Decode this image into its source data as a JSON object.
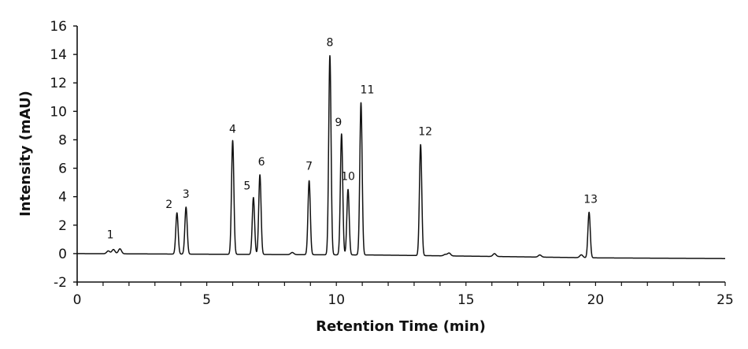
{
  "chart_data": {
    "type": "line",
    "title": "",
    "xlabel": "Retention Time (min)",
    "ylabel": "Intensity (mAU)",
    "xlim": [
      0,
      25
    ],
    "ylim": [
      -2,
      16
    ],
    "x_ticks": [
      0,
      5,
      10,
      15,
      20,
      25
    ],
    "y_ticks": [
      -2,
      0,
      2,
      4,
      6,
      8,
      10,
      12,
      14,
      16
    ],
    "grid": false,
    "legend": null,
    "baseline": [
      {
        "x": 0,
        "y": 0
      },
      {
        "x": 11.5,
        "y": -0.1
      },
      {
        "x": 16,
        "y": -0.2
      },
      {
        "x": 20,
        "y": -0.3
      },
      {
        "x": 25,
        "y": -0.35
      }
    ],
    "peaks": [
      {
        "label": "1",
        "time": 1.4,
        "intensity": 0.3
      },
      {
        "label": "2",
        "time": 3.85,
        "intensity": 2.9
      },
      {
        "label": "3",
        "time": 4.2,
        "intensity": 3.3
      },
      {
        "label": "4",
        "time": 6.0,
        "intensity": 8.0
      },
      {
        "label": "5",
        "time": 6.8,
        "intensity": 4.0
      },
      {
        "label": "6",
        "time": 7.05,
        "intensity": 5.6
      },
      {
        "label": "7",
        "time": 8.95,
        "intensity": 5.2
      },
      {
        "label": "8",
        "time": 9.75,
        "intensity": 14.0
      },
      {
        "label": "9",
        "time": 10.2,
        "intensity": 8.5
      },
      {
        "label": "10",
        "time": 10.45,
        "intensity": 4.6
      },
      {
        "label": "11",
        "time": 10.95,
        "intensity": 10.7
      },
      {
        "label": "12",
        "time": 13.25,
        "intensity": 7.8
      },
      {
        "label": "13",
        "time": 19.75,
        "intensity": 3.2
      }
    ],
    "minor_peaks": [
      {
        "time": 1.2,
        "intensity": 0.2
      },
      {
        "time": 1.65,
        "intensity": 0.35
      },
      {
        "time": 8.3,
        "intensity": 0.15
      },
      {
        "time": 14.2,
        "intensity": 0.1
      },
      {
        "time": 14.35,
        "intensity": 0.2
      },
      {
        "time": 16.1,
        "intensity": 0.2
      },
      {
        "time": 17.85,
        "intensity": 0.15
      },
      {
        "time": 19.45,
        "intensity": 0.2
      }
    ],
    "peak_label_offsets": {
      "1": [
        -4,
        -14
      ],
      "2": [
        -10,
        -6
      ],
      "3": [
        0,
        -12
      ],
      "4": [
        0,
        -10
      ],
      "5": [
        -8,
        -10
      ],
      "6": [
        2,
        -12
      ],
      "7": [
        0,
        -14
      ],
      "8": [
        0,
        -12
      ],
      "9": [
        -4,
        -10
      ],
      "10": [
        0,
        -12
      ],
      "11": [
        8,
        -12
      ],
      "12": [
        6,
        -12
      ],
      "13": [
        2,
        -12
      ]
    }
  }
}
